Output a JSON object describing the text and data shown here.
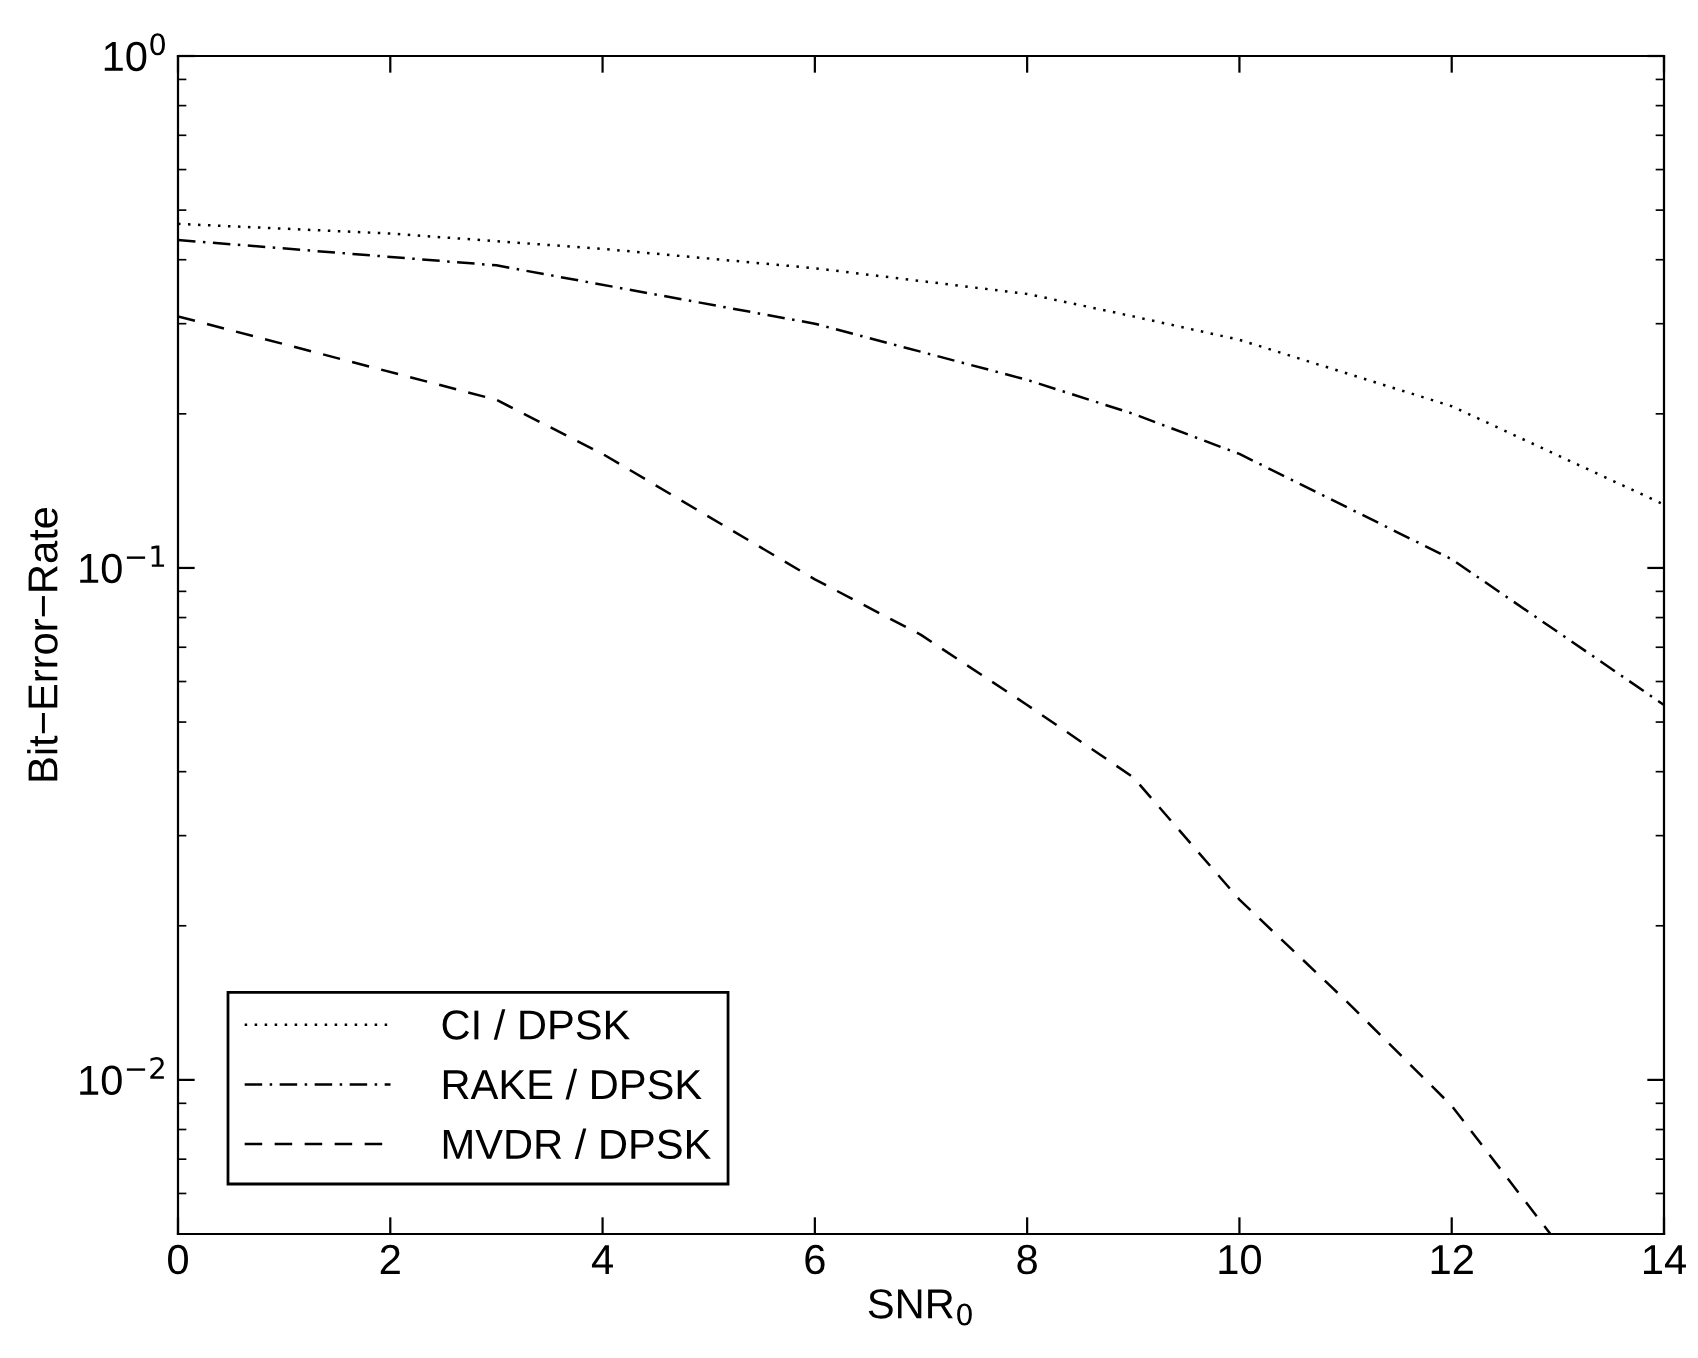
{
  "chart_data": {
    "type": "line",
    "xlabel": "SNR$_{0}$",
    "ylabel": "Bit−Error−Rate",
    "log": "y",
    "xlim": [
      0,
      14
    ],
    "ylim": [
      0.005,
      1
    ],
    "xticks": [
      0,
      2,
      4,
      6,
      8,
      10,
      12,
      14
    ],
    "yticks": [
      {
        "value": 0.01,
        "label": "10$^{−2}$"
      },
      {
        "value": 0.1,
        "label": "10$^{−1}$"
      },
      {
        "value": 1,
        "label": "10$^{0}$"
      }
    ],
    "grid": false,
    "legend": "bottom left",
    "series": [
      {
        "name": "CI / DPSK",
        "color": "#000000",
        "line_style": "dotted",
        "x": [
          0,
          2,
          4,
          6,
          8,
          9,
          10,
          12,
          14
        ],
        "values": [
          0.47,
          0.45,
          0.42,
          0.385,
          0.343,
          0.31,
          0.279,
          0.207,
          0.133
        ]
      },
      {
        "name": "RAKE / DPSK",
        "color": "#000000",
        "line_style": "dashdot",
        "x": [
          0,
          3,
          6,
          8,
          9,
          10,
          12,
          14
        ],
        "values": [
          0.437,
          0.39,
          0.3,
          0.233,
          0.2,
          0.167,
          0.104,
          0.054
        ]
      },
      {
        "name": "MVDR / DPSK",
        "color": "#000000",
        "line_style": "dashed",
        "x": [
          0,
          3,
          4,
          6,
          7,
          8,
          9,
          10,
          11,
          12,
          12.93
        ],
        "values": [
          0.31,
          0.213,
          0.167,
          0.095,
          0.074,
          0.054,
          0.039,
          0.0225,
          0.0143,
          0.0089,
          0.005
        ]
      }
    ]
  }
}
